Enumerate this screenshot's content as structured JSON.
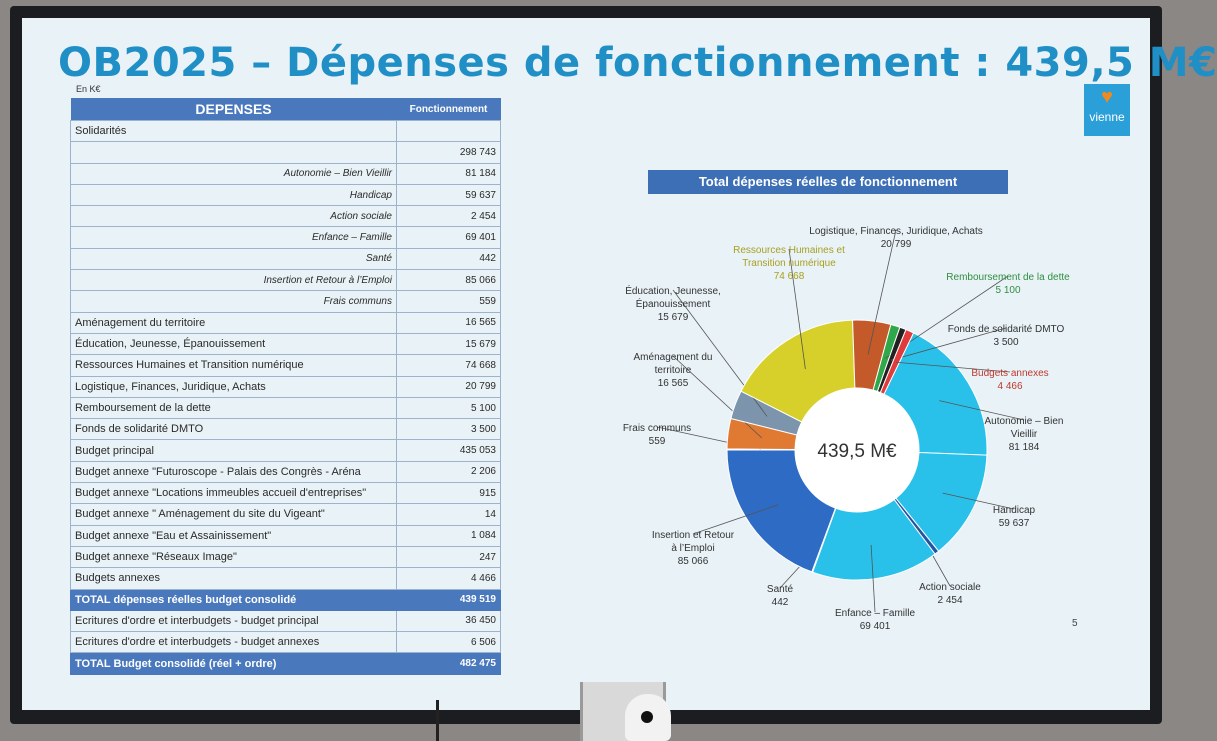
{
  "slide": {
    "title": "OB2025 – Dépenses de fonctionnement : 439,5 M€",
    "unit": "En K€",
    "logo_text": "vienne",
    "page_number": "5"
  },
  "table": {
    "header": [
      "DEPENSES",
      "Fonctionnement"
    ],
    "rows": [
      {
        "label": "Solidarités",
        "value": "",
        "style": "main"
      },
      {
        "label": "",
        "value": "298 743",
        "style": "main"
      },
      {
        "label": "Autonomie – Bien Vieillir",
        "value": "81 184",
        "style": "sub"
      },
      {
        "label": "Handicap",
        "value": "59 637",
        "style": "sub"
      },
      {
        "label": "Action sociale",
        "value": "2 454",
        "style": "sub"
      },
      {
        "label": "Enfance – Famille",
        "value": "69 401",
        "style": "sub"
      },
      {
        "label": "Santé",
        "value": "442",
        "style": "sub"
      },
      {
        "label": "Insertion et Retour à l’Emploi",
        "value": "85 066",
        "style": "sub"
      },
      {
        "label": "Frais communs",
        "value": "559",
        "style": "sub"
      },
      {
        "label": "Aménagement du territoire",
        "value": "16 565",
        "style": "main"
      },
      {
        "label": "Éducation, Jeunesse, Épanouissement",
        "value": "15 679",
        "style": "main"
      },
      {
        "label": "Ressources Humaines et Transition numérique",
        "value": "74 668",
        "style": "main"
      },
      {
        "label": "Logistique, Finances, Juridique, Achats",
        "value": "20 799",
        "style": "main"
      },
      {
        "label": "Remboursement de la dette",
        "value": "5 100",
        "style": "main"
      },
      {
        "label": "Fonds de solidarité DMTO",
        "value": "3 500",
        "style": "main"
      },
      {
        "label": "Budget principal",
        "value": "435 053",
        "style": "main"
      },
      {
        "label": "Budget annexe \"Futuroscope - Palais des Congrès - Aréna",
        "value": "2 206",
        "style": "main"
      },
      {
        "label": "Budget annexe \"Locations immeubles accueil d'entreprises\"",
        "value": "915",
        "style": "main"
      },
      {
        "label": "Budget annexe \" Aménagement du site du Vigeant\"",
        "value": "14",
        "style": "main"
      },
      {
        "label": "Budget annexe \"Eau et Assainissement\"",
        "value": "1 084",
        "style": "main"
      },
      {
        "label": "Budget annexe \"Réseaux Image\"",
        "value": "247",
        "style": "main"
      },
      {
        "label": "Budgets annexes",
        "value": "4 466",
        "style": "main"
      },
      {
        "label": "TOTAL dépenses réelles budget consolidé",
        "value": "439 519",
        "style": "total"
      },
      {
        "label": "Ecritures d'ordre et interbudgets - budget principal",
        "value": "36 450",
        "style": "main"
      },
      {
        "label": "Ecritures d'ordre et interbudgets - budget annexes",
        "value": "6 506",
        "style": "main"
      },
      {
        "label": "TOTAL Budget consolidé (réel + ordre)",
        "value": "482 475",
        "style": "total"
      }
    ]
  },
  "chart_data": {
    "type": "pie",
    "title": "Total dépenses réelles de fonctionnement",
    "center_label": "439,5 M€",
    "slices": [
      {
        "name": "Autonomie – Bien Vieillir",
        "label_lines": [
          "Autonomie – Bien",
          "Vieillir"
        ],
        "value_label": "81 184",
        "value": 81184,
        "color": "#29c1ea",
        "label_color": "#333333"
      },
      {
        "name": "Handicap",
        "label_lines": [
          "Handicap"
        ],
        "value_label": "59 637",
        "value": 59637,
        "color": "#29c1ea",
        "label_color": "#333333"
      },
      {
        "name": "Action sociale",
        "label_lines": [
          "Action sociale"
        ],
        "value_label": "2 454",
        "value": 2454,
        "color": "#1f56a8",
        "label_color": "#333333"
      },
      {
        "name": "Enfance – Famille",
        "label_lines": [
          "Enfance – Famille"
        ],
        "value_label": "69 401",
        "value": 69401,
        "color": "#29c1ea",
        "label_color": "#333333"
      },
      {
        "name": "Santé",
        "label_lines": [
          "Santé"
        ],
        "value_label": "442",
        "value": 442,
        "color": "#1f56a8",
        "label_color": "#333333"
      },
      {
        "name": "Insertion et Retour à l’Emploi",
        "label_lines": [
          "Insertion et Retour",
          "à l’Emploi"
        ],
        "value_label": "85 066",
        "value": 85066,
        "color": "#2d6bc4",
        "label_color": "#333333"
      },
      {
        "name": "Frais communs",
        "label_lines": [
          "Frais communs"
        ],
        "value_label": "559",
        "value": 559,
        "color": "#2d6bc4",
        "label_color": "#333333"
      },
      {
        "name": "Aménagement du territoire",
        "label_lines": [
          "Aménagement du",
          "territoire"
        ],
        "value_label": "16 565",
        "value": 16565,
        "color": "#e07a33",
        "label_color": "#333333"
      },
      {
        "name": "Éducation, Jeunesse, Épanouissement",
        "label_lines": [
          "Éducation, Jeunesse,",
          "Épanouissement"
        ],
        "value_label": "15 679",
        "value": 15679,
        "color": "#7c95ac",
        "label_color": "#333333"
      },
      {
        "name": "Ressources Humaines et Transition numérique",
        "label_lines": [
          "Ressources Humaines et",
          "Transition numérique"
        ],
        "value_label": "74 668",
        "value": 74668,
        "color": "#d7cf2a",
        "label_color": "#a8a020"
      },
      {
        "name": "Logistique, Finances, Juridique, Achats",
        "label_lines": [
          "Logistique, Finances, Juridique, Achats"
        ],
        "value_label": "20 799",
        "value": 20799,
        "color": "#c45a2a",
        "label_color": "#333333"
      },
      {
        "name": "Remboursement de la dette",
        "label_lines": [
          "Remboursement de la dette"
        ],
        "value_label": "5 100",
        "value": 5100,
        "color": "#2fa84a",
        "label_color": "#2f8f3f"
      },
      {
        "name": "Fonds de solidarité DMTO",
        "label_lines": [
          "Fonds de solidarité DMTO"
        ],
        "value_label": "3 500",
        "value": 3500,
        "color": "#222222",
        "label_color": "#333333"
      },
      {
        "name": "Budgets annexes",
        "label_lines": [
          "Budgets annexes"
        ],
        "value_label": "4 466",
        "value": 4466,
        "color": "#e23b3b",
        "label_color": "#c0392b"
      }
    ]
  }
}
